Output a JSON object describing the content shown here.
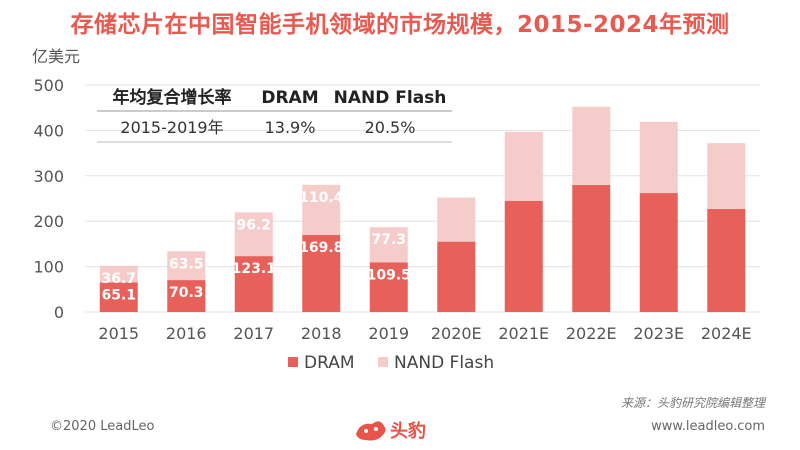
{
  "title": "存储芯片在中国智能手机领域的市场规模，2015-2024年预测",
  "y_unit": "亿美元",
  "table": {
    "headers": [
      "年均复合增长率",
      "DRAM",
      "NAND Flash"
    ],
    "row": [
      "2015-2019年",
      "13.9%",
      "20.5%"
    ]
  },
  "chart_data": {
    "type": "bar",
    "stacked": true,
    "categories": [
      "2015",
      "2016",
      "2017",
      "2018",
      "2019",
      "2020E",
      "2021E",
      "2022E",
      "2023E",
      "2024E"
    ],
    "series": [
      {
        "name": "DRAM",
        "values": [
          65.1,
          70.3,
          123.1,
          169.8,
          109.5,
          155,
          245,
          280,
          262,
          227
        ],
        "labels": [
          "65.1",
          "70.3",
          "123.1",
          "169.8",
          "109.5",
          "",
          "",
          "",
          "",
          ""
        ],
        "color": "#e8605a"
      },
      {
        "name": "NAND Flash",
        "values": [
          36.7,
          63.5,
          96.2,
          110.4,
          77.3,
          97,
          152,
          172,
          157,
          145
        ],
        "labels": [
          "36.7",
          "63.5",
          "96.2",
          "110.4",
          "77.3",
          "",
          "",
          "",
          "",
          ""
        ],
        "color": "#f6cccb"
      }
    ],
    "ylim": [
      0,
      500
    ],
    "yticks": [
      0,
      100,
      200,
      300,
      400,
      500
    ],
    "legend_position": "bottom"
  },
  "source": "来源：头豹研究院编辑整理",
  "footer_left": "©2020 LeadLeo",
  "footer_right": "www.leadleo.com",
  "logo_text": "头豹"
}
